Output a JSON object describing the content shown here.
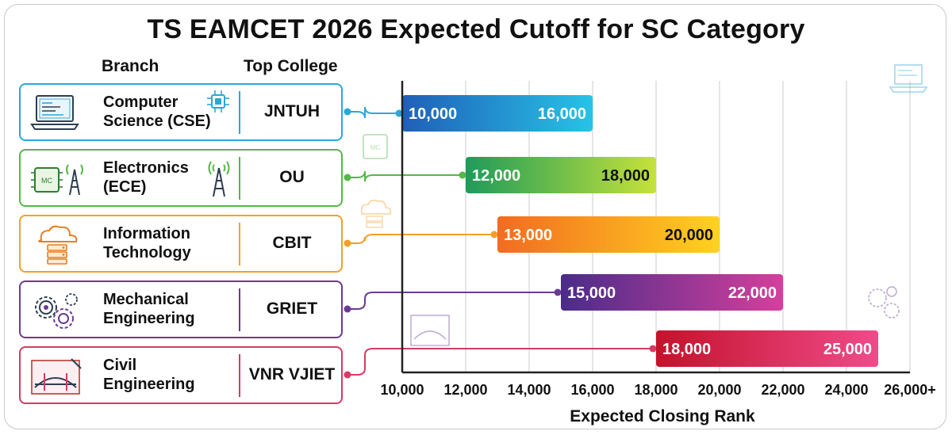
{
  "title": "TS EAMCET 2026 Expected Cutoff for SC Category",
  "headers": {
    "branch": "Branch",
    "college": "Top College"
  },
  "colors": {
    "cse": "#2aa8d8",
    "ece": "#55b848",
    "it": "#f2a02a",
    "mech": "#6b3a92",
    "civil": "#d83a63"
  },
  "branches": [
    {
      "line1": "Computer",
      "line2": "Science (CSE)",
      "college": "JNTUH",
      "icon": "laptop-code-icon"
    },
    {
      "line1": "Electronics",
      "line2": "(ECE)",
      "college": "OU",
      "icon": "microchip-antenna-icon"
    },
    {
      "line1": "Information",
      "line2": "Technology",
      "college": "CBIT",
      "icon": "cloud-server-icon"
    },
    {
      "line1": "Mechanical",
      "line2": "Engineering",
      "college": "GRIET",
      "icon": "gears-icon"
    },
    {
      "line1": "Civil",
      "line2": "Engineering",
      "college": "VNR VJIET",
      "icon": "bridge-blueprint-icon"
    }
  ],
  "chart_data": {
    "type": "bar",
    "orientation": "horizontal-range",
    "categories": [
      "Computer Science (CSE)",
      "Electronics (ECE)",
      "Information Technology",
      "Mechanical Engineering",
      "Civil Engineering"
    ],
    "series": [
      {
        "values": [
          [
            10000,
            16000
          ],
          [
            12000,
            18000
          ],
          [
            13000,
            20000
          ],
          [
            15000,
            22000
          ],
          [
            18000,
            25000
          ]
        ]
      }
    ],
    "bar_labels": [
      [
        "10,000",
        "16,000"
      ],
      [
        "12,000",
        "18,000"
      ],
      [
        "13,000",
        "20,000"
      ],
      [
        "15,000",
        "22,000"
      ],
      [
        "18,000",
        "25,000"
      ]
    ],
    "xlabel": "Expected Closing Rank",
    "xlim": [
      10000,
      26000
    ],
    "xticks": [
      10000,
      12000,
      14000,
      16000,
      18000,
      20000,
      22000,
      24000,
      26000
    ],
    "xtick_labels": [
      "10,000",
      "12,000",
      "14,000",
      "16,000",
      "18,000",
      "20,000",
      "22,000",
      "24,000",
      "26,000+"
    ],
    "grid": true
  }
}
